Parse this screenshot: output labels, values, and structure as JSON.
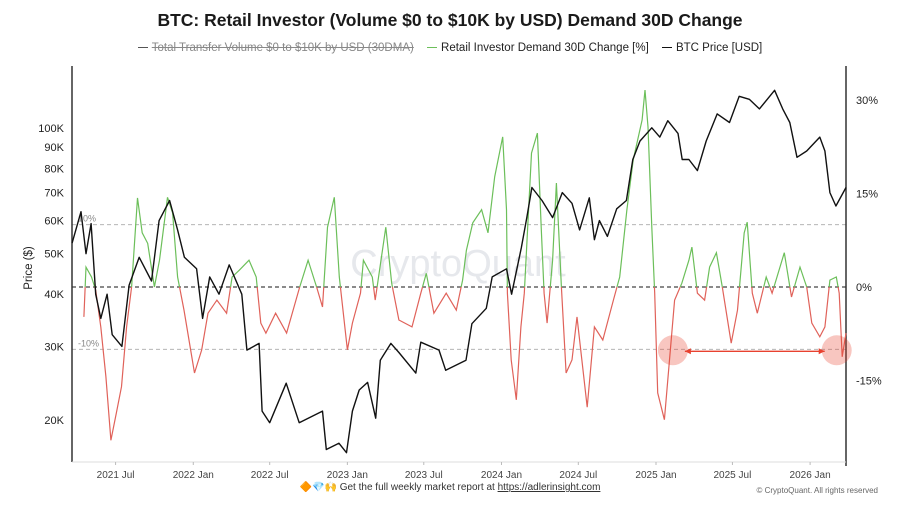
{
  "chart_data": {
    "type": "line",
    "title": "BTC: Retail Investor (Volume $0 to $10K by USD) Demand 30D Change",
    "legend": {
      "placement": "top",
      "entries": [
        {
          "label": "Total Transfer Volume  $0 to $10K by USD (30DMA)",
          "color": "#555555",
          "hidden": true
        },
        {
          "label": "Retail Investor Demand 30D Change [%]",
          "color": "#6cbf5a"
        },
        {
          "label": "BTC Price [USD]",
          "color": "#111111"
        }
      ]
    },
    "ylabel": "Price ($)",
    "yscale": "log",
    "ylim": [
      15900,
      139000
    ],
    "y2lim": [
      -28,
      35
    ],
    "y_ticks": [
      {
        "value": 100000,
        "label": "100K"
      },
      {
        "value": 90000,
        "label": "90K"
      },
      {
        "value": 80000,
        "label": "80K"
      },
      {
        "value": 70000,
        "label": "70K"
      },
      {
        "value": 60000,
        "label": "60K"
      },
      {
        "value": 50000,
        "label": "50K"
      },
      {
        "value": 40000,
        "label": "40K"
      },
      {
        "value": 30000,
        "label": "30K"
      },
      {
        "value": 20000,
        "label": "20K"
      }
    ],
    "y2_ticks": [
      {
        "value": 30,
        "label": "30%"
      },
      {
        "value": 15,
        "label": "15%"
      },
      {
        "value": 0,
        "label": "0%"
      },
      {
        "value": -15,
        "label": "-15%"
      }
    ],
    "x_ticks": [
      {
        "value": "2021-07-01",
        "label": "2021 Jul"
      },
      {
        "value": "2022-01-01",
        "label": "2022 Jan"
      },
      {
        "value": "2022-07-01",
        "label": "2022 Jul"
      },
      {
        "value": "2023-01-01",
        "label": "2023 Jan"
      },
      {
        "value": "2023-07-01",
        "label": "2023 Jul"
      },
      {
        "value": "2024-01-01",
        "label": "2024 Jan"
      },
      {
        "value": "2024-07-01",
        "label": "2024 Jul"
      },
      {
        "value": "2025-01-01",
        "label": "2025 Jan"
      },
      {
        "value": "2025-07-01",
        "label": "2025 Jul"
      },
      {
        "value": "2026-01-01",
        "label": "2026 Jan"
      }
    ],
    "reference_lines": [
      {
        "value": 10,
        "label": "10%",
        "style": "dashed"
      },
      {
        "value": 0,
        "label": "",
        "style": "dashed"
      },
      {
        "value": -10,
        "label": "-10%",
        "style": "dashed"
      }
    ],
    "grid": false,
    "colors": {
      "positive": "#6cbf5a",
      "negative": "#e0625a",
      "price": "#111111",
      "annotation": "#e8412f"
    },
    "annotation": {
      "from": "2025-02-10",
      "to": "2026-03-05",
      "value": -10,
      "type": "double-arrow-with-circles"
    },
    "series": [
      {
        "name": "BTC Price [USD]",
        "axis": "left",
        "points": [
          [
            "2021-03-20",
            53000
          ],
          [
            "2021-04-10",
            63000
          ],
          [
            "2021-04-22",
            50000
          ],
          [
            "2021-05-04",
            59000
          ],
          [
            "2021-05-15",
            40000
          ],
          [
            "2021-05-27",
            35000
          ],
          [
            "2021-06-11",
            40000
          ],
          [
            "2021-06-23",
            32000
          ],
          [
            "2021-07-16",
            30000
          ],
          [
            "2021-08-02",
            42000
          ],
          [
            "2021-08-26",
            49000
          ],
          [
            "2021-09-24",
            43000
          ],
          [
            "2021-10-12",
            60000
          ],
          [
            "2021-11-06",
            67000
          ],
          [
            "2021-11-25",
            57000
          ],
          [
            "2021-12-11",
            49000
          ],
          [
            "2022-01-09",
            46000
          ],
          [
            "2022-01-23",
            35000
          ],
          [
            "2022-02-09",
            44000
          ],
          [
            "2022-03-03",
            40000
          ],
          [
            "2022-03-27",
            47000
          ],
          [
            "2022-04-26",
            40000
          ],
          [
            "2022-05-08",
            29400
          ],
          [
            "2022-06-06",
            30500
          ],
          [
            "2022-06-13",
            21000
          ],
          [
            "2022-07-01",
            19700
          ],
          [
            "2022-08-09",
            24500
          ],
          [
            "2022-09-09",
            19700
          ],
          [
            "2022-11-03",
            21000
          ],
          [
            "2022-11-12",
            17000
          ],
          [
            "2022-12-12",
            17600
          ],
          [
            "2022-12-30",
            16700
          ],
          [
            "2023-01-13",
            21000
          ],
          [
            "2023-01-29",
            23600
          ],
          [
            "2023-02-18",
            24600
          ],
          [
            "2023-03-09",
            20200
          ],
          [
            "2023-03-20",
            27800
          ],
          [
            "2023-04-14",
            30500
          ],
          [
            "2023-05-03",
            29000
          ],
          [
            "2023-06-12",
            25900
          ],
          [
            "2023-06-24",
            30700
          ],
          [
            "2023-08-06",
            29400
          ],
          [
            "2023-08-22",
            26300
          ],
          [
            "2023-10-09",
            27800
          ],
          [
            "2023-10-23",
            34000
          ],
          [
            "2023-11-26",
            37000
          ],
          [
            "2023-12-10",
            44000
          ],
          [
            "2024-01-13",
            46000
          ],
          [
            "2024-01-25",
            40000
          ],
          [
            "2024-02-17",
            51600
          ],
          [
            "2024-03-01",
            61000
          ],
          [
            "2024-03-13",
            72000
          ],
          [
            "2024-04-06",
            67000
          ],
          [
            "2024-05-01",
            61000
          ],
          [
            "2024-05-24",
            70000
          ],
          [
            "2024-06-16",
            66000
          ],
          [
            "2024-07-04",
            57000
          ],
          [
            "2024-07-27",
            68000
          ],
          [
            "2024-08-08",
            54000
          ],
          [
            "2024-08-20",
            60000
          ],
          [
            "2024-09-08",
            55000
          ],
          [
            "2024-09-30",
            64000
          ],
          [
            "2024-10-23",
            67000
          ],
          [
            "2024-11-07",
            84000
          ],
          [
            "2024-11-24",
            93000
          ],
          [
            "2024-12-22",
            100000
          ],
          [
            "2025-01-10",
            95000
          ],
          [
            "2025-01-29",
            104000
          ],
          [
            "2025-02-22",
            97000
          ],
          [
            "2025-03-04",
            84000
          ],
          [
            "2025-03-20",
            84000
          ],
          [
            "2025-04-09",
            79000
          ],
          [
            "2025-04-30",
            93000
          ],
          [
            "2025-05-26",
            108000
          ],
          [
            "2025-06-24",
            103000
          ],
          [
            "2025-07-17",
            119000
          ],
          [
            "2025-08-10",
            117000
          ],
          [
            "2025-09-03",
            111000
          ],
          [
            "2025-10-09",
            123000
          ],
          [
            "2025-10-28",
            111000
          ],
          [
            "2025-11-14",
            103000
          ],
          [
            "2025-12-01",
            85000
          ],
          [
            "2025-12-24",
            88000
          ],
          [
            "2026-01-24",
            95000
          ],
          [
            "2026-02-05",
            88000
          ],
          [
            "2026-02-17",
            70000
          ],
          [
            "2026-03-03",
            65000
          ],
          [
            "2026-03-27",
            72000
          ]
        ]
      },
      {
        "name": "Retail Investor Demand 30D Change [%]",
        "axis": "right",
        "points": [
          [
            "2021-04-17",
            -4.8
          ],
          [
            "2021-04-22",
            3.2
          ],
          [
            "2021-05-05",
            1.6
          ],
          [
            "2021-05-15",
            -0.5
          ],
          [
            "2021-05-27",
            -6.4
          ],
          [
            "2021-06-08",
            -14.4
          ],
          [
            "2021-06-20",
            -24.6
          ],
          [
            "2021-07-03",
            -20.2
          ],
          [
            "2021-07-15",
            -16.0
          ],
          [
            "2021-07-27",
            -6.4
          ],
          [
            "2021-08-08",
            0.0
          ],
          [
            "2021-08-22",
            14.3
          ],
          [
            "2021-09-02",
            8.7
          ],
          [
            "2021-09-15",
            7.0
          ],
          [
            "2021-10-01",
            0.0
          ],
          [
            "2021-10-13",
            4.3
          ],
          [
            "2021-11-01",
            14.4
          ],
          [
            "2021-11-13",
            11.9
          ],
          [
            "2021-11-25",
            1.6
          ],
          [
            "2021-12-10",
            -3.7
          ],
          [
            "2022-01-04",
            -13.8
          ],
          [
            "2022-01-21",
            -10.1
          ],
          [
            "2022-02-05",
            -4.2
          ],
          [
            "2022-02-26",
            -2.1
          ],
          [
            "2022-03-21",
            -4.2
          ],
          [
            "2022-04-03",
            1.6
          ],
          [
            "2022-04-20",
            2.7
          ],
          [
            "2022-05-13",
            4.3
          ],
          [
            "2022-05-30",
            1.6
          ],
          [
            "2022-06-10",
            -5.8
          ],
          [
            "2022-06-22",
            -7.4
          ],
          [
            "2022-07-15",
            -4.2
          ],
          [
            "2022-08-10",
            -7.4
          ],
          [
            "2022-09-10",
            0.0
          ],
          [
            "2022-09-30",
            4.3
          ],
          [
            "2022-10-20",
            0.0
          ],
          [
            "2022-11-03",
            -3.2
          ],
          [
            "2022-11-15",
            9.6
          ],
          [
            "2022-12-01",
            14.4
          ],
          [
            "2022-12-13",
            1.6
          ],
          [
            "2023-01-01",
            -10.1
          ],
          [
            "2023-01-13",
            -5.8
          ],
          [
            "2023-02-01",
            -1.0
          ],
          [
            "2023-02-08",
            4.3
          ],
          [
            "2023-03-01",
            1.6
          ],
          [
            "2023-03-08",
            -2.1
          ],
          [
            "2023-04-02",
            9.6
          ],
          [
            "2023-04-16",
            0.6
          ],
          [
            "2023-05-03",
            -5.3
          ],
          [
            "2023-06-03",
            -6.4
          ],
          [
            "2023-06-24",
            -1.0
          ],
          [
            "2023-07-07",
            2.2
          ],
          [
            "2023-07-25",
            -4.2
          ],
          [
            "2023-08-23",
            -1.0
          ],
          [
            "2023-09-16",
            -3.7
          ],
          [
            "2023-10-01",
            1.1
          ],
          [
            "2023-10-10",
            5.9
          ],
          [
            "2023-10-25",
            10.3
          ],
          [
            "2023-11-15",
            12.4
          ],
          [
            "2023-11-30",
            8.7
          ],
          [
            "2023-12-16",
            17.7
          ],
          [
            "2024-01-04",
            24.1
          ],
          [
            "2024-01-13",
            12.4
          ],
          [
            "2024-01-15",
            -1.0
          ],
          [
            "2024-01-24",
            -11.7
          ],
          [
            "2024-02-05",
            -18.1
          ],
          [
            "2024-02-16",
            -6.4
          ],
          [
            "2024-02-24",
            -1.0
          ],
          [
            "2024-03-12",
            21.5
          ],
          [
            "2024-03-26",
            24.7
          ],
          [
            "2024-04-04",
            9.6
          ],
          [
            "2024-04-11",
            -1.0
          ],
          [
            "2024-04-18",
            -5.8
          ],
          [
            "2024-05-01",
            4.3
          ],
          [
            "2024-05-10",
            16.7
          ],
          [
            "2024-05-22",
            0.0
          ],
          [
            "2024-06-02",
            -13.8
          ],
          [
            "2024-06-16",
            -11.7
          ],
          [
            "2024-06-28",
            -4.8
          ],
          [
            "2024-07-22",
            -19.3
          ],
          [
            "2024-08-08",
            -6.4
          ],
          [
            "2024-08-28",
            -8.5
          ],
          [
            "2024-09-22",
            -2.1
          ],
          [
            "2024-10-07",
            1.6
          ],
          [
            "2024-10-24",
            12.4
          ],
          [
            "2024-11-08",
            20.4
          ],
          [
            "2024-11-29",
            26.8
          ],
          [
            "2024-12-06",
            31.6
          ],
          [
            "2024-12-13",
            25.7
          ],
          [
            "2024-12-22",
            9.6
          ],
          [
            "2024-12-29",
            -1.0
          ],
          [
            "2025-01-05",
            -17.0
          ],
          [
            "2025-01-21",
            -21.3
          ],
          [
            "2025-02-02",
            -11.7
          ],
          [
            "2025-02-14",
            -2.1
          ],
          [
            "2025-03-03",
            0.6
          ],
          [
            "2025-03-20",
            4.3
          ],
          [
            "2025-03-27",
            6.4
          ],
          [
            "2025-04-09",
            -1.0
          ],
          [
            "2025-04-26",
            -2.1
          ],
          [
            "2025-05-08",
            3.2
          ],
          [
            "2025-05-24",
            5.5
          ],
          [
            "2025-06-07",
            0.0
          ],
          [
            "2025-06-28",
            -9.0
          ],
          [
            "2025-07-13",
            -3.7
          ],
          [
            "2025-07-29",
            8.7
          ],
          [
            "2025-08-05",
            10.4
          ],
          [
            "2025-08-17",
            -1.0
          ],
          [
            "2025-08-29",
            -4.2
          ],
          [
            "2025-09-19",
            1.6
          ],
          [
            "2025-10-03",
            -1.0
          ],
          [
            "2025-11-01",
            5.5
          ],
          [
            "2025-11-18",
            -1.6
          ],
          [
            "2025-12-08",
            3.2
          ],
          [
            "2025-12-24",
            0.0
          ],
          [
            "2026-01-05",
            -5.8
          ],
          [
            "2026-01-24",
            -8.0
          ],
          [
            "2026-02-05",
            -6.4
          ],
          [
            "2026-02-17",
            1.1
          ],
          [
            "2026-03-04",
            1.6
          ],
          [
            "2026-03-11",
            -1.0
          ],
          [
            "2026-03-18",
            -11.2
          ],
          [
            "2026-03-27",
            -7.4
          ]
        ]
      }
    ]
  },
  "watermark": "CryptoQuant",
  "footer": {
    "emoji": "🔶💎🙌",
    "text": "Get the full weekly market report at",
    "link": "https://adlerinsight.com",
    "copyright": "© CryptoQuant. All rights reserved"
  }
}
